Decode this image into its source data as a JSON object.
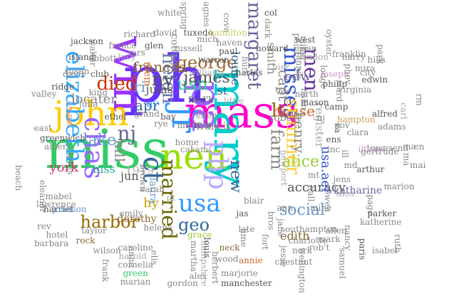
{
  "words": [
    {
      "text": "ph",
      "color": "#6633ff"
    },
    {
      "text": "miss",
      "color": "#33cc66"
    },
    {
      "text": "mass",
      "color": "#ff00cc"
    },
    {
      "text": "mary",
      "color": "#00cccc"
    },
    {
      "text": "wm",
      "color": "#9933ff"
    },
    {
      "text": "john",
      "color": "#ffcc00"
    },
    {
      "text": "nen",
      "color": "#99dd00"
    },
    {
      "text": "pa",
      "color": "#9966ff"
    },
    {
      "text": "jr",
      "color": "#3399ff"
    },
    {
      "text": "elizabeth",
      "color": "#33aaff"
    },
    {
      "text": "chas",
      "color": "#9966ff"
    },
    {
      "text": "helen",
      "color": "#6677aa"
    },
    {
      "text": "margaret",
      "color": "#666699"
    },
    {
      "text": "misses",
      "color": "#3355cc"
    },
    {
      "text": "men",
      "color": "#663399"
    },
    {
      "text": "lt",
      "color": "#886600"
    },
    {
      "text": "married",
      "color": "#666600"
    },
    {
      "text": "harbor",
      "color": "#996600"
    },
    {
      "text": "usa",
      "color": "#3399ff"
    },
    {
      "text": "php",
      "color": "#bbaaff"
    },
    {
      "text": "ct",
      "color": "#336699"
    },
    {
      "text": "died",
      "color": "#cc3300"
    },
    {
      "text": "hill",
      "color": "#888888"
    },
    {
      "text": "farm",
      "color": "#888888"
    },
    {
      "text": "new",
      "color": "#336699"
    },
    {
      "text": "lake",
      "color": "#6699cc"
    },
    {
      "text": "nj",
      "color": "#666699"
    },
    {
      "text": "geo",
      "color": "#336699"
    },
    {
      "text": "usn",
      "color": "#33cc99"
    },
    {
      "text": "george",
      "color": "#996633"
    },
    {
      "text": "james",
      "color": "#555555"
    },
    {
      "text": "alice",
      "color": "#99cc33"
    },
    {
      "text": "house",
      "color": "#cc6633"
    },
    {
      "text": "summer",
      "color": "#ffcc33"
    },
    {
      "text": "frances",
      "color": "#886633"
    },
    {
      "text": "ny",
      "color": "#555555"
    },
    {
      "text": "apr",
      "color": "#336699"
    },
    {
      "text": "henry",
      "color": "#888888"
    },
    {
      "text": "social",
      "color": "#6699cc"
    },
    {
      "text": "accuracy",
      "color": "#555555"
    },
    {
      "text": "capt",
      "color": "#888888"
    },
    {
      "text": "edw",
      "color": "#666699"
    },
    {
      "text": "locater",
      "color": "#888888"
    },
    {
      "text": "usa.aef",
      "color": "#3355cc"
    },
    {
      "text": "hy",
      "color": "#cc9900"
    },
    {
      "text": "1919",
      "color": "#aaaaaa"
    },
    {
      "text": "york",
      "color": "#cc3366"
    },
    {
      "text": "niss",
      "color": "#33aa99"
    },
    {
      "text": "jun",
      "color": "#555555"
    },
    {
      "text": "edith",
      "color": "#886633"
    },
    {
      "text": "louise",
      "color": "#336699"
    },
    {
      "text": "smith",
      "color": "#888888"
    },
    {
      "text": "register",
      "color": "#aaaaaa"
    },
    {
      "text": "robert",
      "color": "#888888"
    },
    {
      "text": "jums",
      "color": "#555555"
    },
    {
      "text": "av",
      "color": "#3399ff"
    },
    {
      "text": "ri",
      "color": "#6699cc"
    },
    {
      "text": "m's",
      "color": "#555555"
    },
    {
      "text": "st",
      "color": "#336699"
    },
    {
      "text": "francis",
      "color": "#888888"
    },
    {
      "text": "jas",
      "color": "#555555"
    },
    {
      "text": "dorothy",
      "color": "#886633"
    },
    {
      "text": "cottage",
      "color": "#888888"
    },
    {
      "text": "laura",
      "color": "#6699cc"
    },
    {
      "text": "mem",
      "color": "#cc6633"
    },
    {
      "text": "katharine",
      "color": "#666699"
    },
    {
      "text": "newport",
      "color": "#aaaaaa"
    },
    {
      "text": "grace",
      "color": "#99cc33"
    },
    {
      "text": "late",
      "color": "#888888"
    },
    {
      "text": "neck",
      "color": "#886633"
    },
    {
      "text": "charlotte",
      "color": "#888888"
    },
    {
      "text": "southampton",
      "color": "#888888"
    },
    {
      "text": "parker",
      "color": "#555555"
    },
    {
      "text": "katherine",
      "color": "#888888"
    },
    {
      "text": "emily",
      "color": "#888888"
    },
    {
      "text": "hotel",
      "color": "#888888"
    },
    {
      "text": "barbara",
      "color": "#888888"
    },
    {
      "text": "rock",
      "color": "#886633"
    },
    {
      "text": "wilson",
      "color": "#888888"
    },
    {
      "text": "caroline",
      "color": "#888888"
    },
    {
      "text": "harold",
      "color": "#aaaaaa"
    },
    {
      "text": "cornelia",
      "color": "#888888"
    },
    {
      "text": "green",
      "color": "#33cc66"
    },
    {
      "text": "marian",
      "color": "#888888"
    },
    {
      "text": "gordon",
      "color": "#888888"
    },
    {
      "text": "alex",
      "color": "#888888"
    },
    {
      "text": "marjorie",
      "color": "#888888"
    },
    {
      "text": "manchester",
      "color": "#555555"
    },
    {
      "text": "annie",
      "color": "#cc6633"
    },
    {
      "text": "wood",
      "color": "#888888"
    },
    {
      "text": "herbert",
      "color": "#888888"
    },
    {
      "text": "nork",
      "color": "#888888"
    },
    {
      "text": "mark",
      "color": "#888888"
    },
    {
      "text": "nancy",
      "color": "#888888"
    },
    {
      "text": "allen",
      "color": "#888888"
    },
    {
      "text": "rob't",
      "color": "#888888"
    },
    {
      "text": "east",
      "color": "#888888"
    },
    {
      "text": "greenwich",
      "color": "#555555"
    },
    {
      "text": "valley",
      "color": "#888888"
    },
    {
      "text": "ridge",
      "color": "#555555"
    },
    {
      "text": "king",
      "color": "#888888"
    },
    {
      "text": "julia",
      "color": "#888888"
    },
    {
      "text": "ethel",
      "color": "#555555"
    },
    {
      "text": "emma",
      "color": "#cc99cc"
    },
    {
      "text": "albert",
      "color": "#888888"
    },
    {
      "text": "mabel",
      "color": "#888888"
    },
    {
      "text": "eleanor",
      "color": "#888888"
    },
    {
      "text": "harriet",
      "color": "#555555"
    },
    {
      "text": "johnson",
      "color": "#6699cc"
    },
    {
      "text": "davis",
      "color": "#888888"
    },
    {
      "text": "club",
      "color": "#555555"
    },
    {
      "text": "france",
      "color": "#888888"
    },
    {
      "text": "lucy",
      "color": "#aaaaaa"
    },
    {
      "text": "jackson",
      "color": "#555555"
    },
    {
      "text": "susan",
      "color": "#888888"
    },
    {
      "text": "island",
      "color": "#555555"
    },
    {
      "text": "walter",
      "color": "#888888"
    },
    {
      "text": "abbott",
      "color": "#888888"
    },
    {
      "text": "mrs",
      "color": "#888888"
    },
    {
      "text": "richard",
      "color": "#888888"
    },
    {
      "text": "glen",
      "color": "#555555"
    },
    {
      "text": "david",
      "color": "#888888"
    },
    {
      "text": "tuxedo",
      "color": "#555555"
    },
    {
      "text": "russell",
      "color": "#888888"
    },
    {
      "text": "hamilton",
      "color": "#cccc66"
    },
    {
      "text": "haven",
      "color": "#888888"
    },
    {
      "text": "paul",
      "color": "#555555"
    },
    {
      "text": "warren",
      "color": "#555555"
    },
    {
      "text": "williams",
      "color": "#aaaaaa"
    },
    {
      "text": "charles",
      "color": "#555555"
    },
    {
      "text": "howard",
      "color": "#555555"
    },
    {
      "text": "dark",
      "color": "#888888"
    },
    {
      "text": "col",
      "color": "#555555"
    },
    {
      "text": "west",
      "color": "#555555"
    },
    {
      "text": "miller",
      "color": "#888888"
    },
    {
      "text": "jean",
      "color": "#888888"
    },
    {
      "text": "london",
      "color": "#aaaaaa"
    },
    {
      "text": "joseph",
      "color": "#cc99cc"
    },
    {
      "text": "philip",
      "color": "#555555"
    },
    {
      "text": "virginia",
      "color": "#888888"
    },
    {
      "text": "harry",
      "color": "#888888"
    },
    {
      "text": "city",
      "color": "#888888"
    },
    {
      "text": "edwin",
      "color": "#555555"
    },
    {
      "text": "alfred",
      "color": "#555555"
    },
    {
      "text": "adams",
      "color": "#888888"
    },
    {
      "text": "townsend",
      "color": "#888888"
    },
    {
      "text": "clara",
      "color": "#888888"
    },
    {
      "text": "hills",
      "color": "#888888"
    },
    {
      "text": "hampton",
      "color": "#cc9966"
    },
    {
      "text": "park",
      "color": "#888888"
    },
    {
      "text": "arthur",
      "color": "#555555"
    },
    {
      "text": "marion",
      "color": "#888888"
    },
    {
      "text": "ruth",
      "color": "#888888"
    },
    {
      "text": "isabel",
      "color": "#888888"
    },
    {
      "text": "paris",
      "color": "#555555"
    },
    {
      "text": "samuel",
      "color": "#888888"
    },
    {
      "text": "wellington",
      "color": "#888888"
    },
    {
      "text": "chestnut",
      "color": "#888888"
    },
    {
      "text": "jesse",
      "color": "#888888"
    },
    {
      "text": "hampshire",
      "color": "#aaaaaa"
    },
    {
      "text": "elis",
      "color": "#888888"
    },
    {
      "text": "martha",
      "color": "#888888"
    },
    {
      "text": "louis",
      "color": "#555555"
    },
    {
      "text": "frank",
      "color": "#888888"
    },
    {
      "text": "lewis",
      "color": "#888888"
    },
    {
      "text": "brown",
      "color": "#888888"
    },
    {
      "text": "helena",
      "color": "#888888"
    },
    {
      "text": "little",
      "color": "#aaaaaa"
    },
    {
      "text": "fred'k",
      "color": "#555555"
    },
    {
      "text": "ellen",
      "color": "#888888"
    },
    {
      "text": "grand",
      "color": "#888888"
    },
    {
      "text": "bay",
      "color": "#555555"
    },
    {
      "text": "rye",
      "color": "#888888"
    },
    {
      "text": "sarah",
      "color": "#888888"
    },
    {
      "text": "pt",
      "color": "#aaaaaa"
    },
    {
      "text": "rev",
      "color": "#888888"
    },
    {
      "text": "cal",
      "color": "#888888"
    },
    {
      "text": "sam",
      "color": "#888888"
    },
    {
      "text": "min",
      "color": "#888888"
    },
    {
      "text": "mt",
      "color": "#888888"
    },
    {
      "text": "inc",
      "color": "#888888"
    },
    {
      "text": "ens",
      "color": "#555555"
    },
    {
      "text": "va",
      "color": "#555555"
    },
    {
      "text": "ill",
      "color": "#888888"
    },
    {
      "text": "md",
      "color": "#888888"
    },
    {
      "text": "jens",
      "color": "#888888"
    },
    {
      "text": "thos",
      "color": "#aaaaaa"
    },
    {
      "text": "iltsure",
      "color": "#cc99cc"
    },
    {
      "text": "carl",
      "color": "#aaaaaa"
    },
    {
      "text": "rm",
      "color": "#888888"
    },
    {
      "text": "mæn",
      "color": "#888888"
    },
    {
      "text": "ma",
      "color": "#888888"
    },
    {
      "text": "mai",
      "color": "#888888"
    },
    {
      "text": "spring",
      "color": "#888888"
    },
    {
      "text": "agnes",
      "color": "#888888"
    },
    {
      "text": "cove",
      "color": "#888888"
    },
    {
      "text": "point",
      "color": "#888888"
    },
    {
      "text": "fannie",
      "color": "#888888"
    },
    {
      "text": "oyster",
      "color": "#888888"
    },
    {
      "text": "franklin",
      "color": "#888888"
    },
    {
      "text": "phov",
      "color": "#888888"
    },
    {
      "text": "ward",
      "color": "#888888"
    },
    {
      "text": "camp",
      "color": "#555555"
    },
    {
      "text": "lodge",
      "color": "#888888"
    },
    {
      "text": "mira",
      "color": "#888888"
    },
    {
      "text": "mason",
      "color": "#555555"
    },
    {
      "text": "north",
      "color": "#888888"
    },
    {
      "text": "pier",
      "color": "#aaaaaa"
    },
    {
      "text": "fort",
      "color": "#888888"
    },
    {
      "text": "jane",
      "color": "#888888"
    },
    {
      "text": "ann",
      "color": "#888888"
    },
    {
      "text": "bros",
      "color": "#888888"
    },
    {
      "text": "lime",
      "color": "#888888"
    },
    {
      "text": "blair",
      "color": "#888888"
    },
    {
      "text": "page",
      "color": "#888888"
    },
    {
      "text": "owen",
      "color": "#888888"
    },
    {
      "text": "mine",
      "color": "#888888"
    },
    {
      "text": "hall",
      "color": "#888888"
    },
    {
      "text": "home",
      "color": "#888888"
    },
    {
      "text": "hahn",
      "color": "#888888"
    },
    {
      "text": "nov",
      "color": "#888888"
    },
    {
      "text": "gertrude",
      "color": "#888888"
    },
    {
      "text": "beach",
      "color": "#888888"
    },
    {
      "text": "lawrence",
      "color": "#888888"
    },
    {
      "text": "taylor",
      "color": "#888888"
    },
    {
      "text": "anna",
      "color": "#888888"
    },
    {
      "text": "white",
      "color": "#888888"
    },
    {
      "text": "mich",
      "color": "#888888"
    },
    {
      "text": "hurt",
      "color": "#888888"
    },
    {
      "text": "ver",
      "color": "#888888"
    },
    {
      "text": "nj",
      "color": "#888888"
    }
  ]
}
